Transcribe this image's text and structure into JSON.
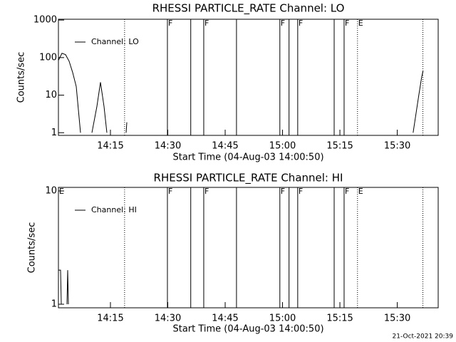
{
  "chart_data": [
    {
      "type": "line",
      "title": "RHESSI PARTICLE_RATE Channel: LO",
      "x_label": "Start Time (04-Aug-03 14:00:50)",
      "y_label": "Counts/sec",
      "x": [
        1.4,
        2.33,
        3.26,
        4.19,
        5.12,
        6.06,
        7.17,
        null,
        10.15,
        11.46,
        12.39,
        13.32,
        14.06,
        null,
        19.09,
        19.28,
        null,
        94.14,
        95.63,
        96.38,
        96.75
      ],
      "series": [
        {
          "name": "Channel: LO",
          "color": "#000000",
          "values": [
            85,
            130,
            120,
            80,
            40,
            17,
            1,
            null,
            1,
            5,
            22,
            5,
            1,
            null,
            1,
            1.9,
            null,
            1,
            10,
            30,
            45
          ]
        }
      ],
      "xlim": [
        1.4,
        100.7
      ],
      "xticks": [
        {
          "value": 15,
          "label": "14:15"
        },
        {
          "value": 30,
          "label": "14:30"
        },
        {
          "value": 45,
          "label": "14:45"
        },
        {
          "value": 60,
          "label": "15:00"
        },
        {
          "value": 75,
          "label": "15:15"
        },
        {
          "value": 90,
          "label": "15:30"
        }
      ],
      "ylim": [
        0.85,
        1050
      ],
      "yticks": [
        1,
        10,
        100,
        1000
      ],
      "y_scale": "log",
      "legend": "upper left",
      "events": [
        {
          "x": 18.7,
          "style": "dotted"
        },
        {
          "x": 29.9,
          "style": "solid",
          "label": "F"
        },
        {
          "x": 36.0,
          "style": "solid"
        },
        {
          "x": 39.4,
          "style": "solid",
          "label": "F"
        },
        {
          "x": 47.96,
          "style": "solid"
        },
        {
          "x": 59.3,
          "style": "solid",
          "label": "F"
        },
        {
          "x": 61.7,
          "style": "solid"
        },
        {
          "x": 63.97,
          "style": "solid",
          "label": "F"
        },
        {
          "x": 73.5,
          "style": "solid"
        },
        {
          "x": 76.1,
          "style": "solid",
          "label": "F"
        },
        {
          "x": 79.6,
          "style": "dotted",
          "label": "E"
        },
        {
          "x": 96.7,
          "style": "dotted"
        }
      ]
    },
    {
      "type": "line",
      "title": "RHESSI PARTICLE_RATE Channel: HI",
      "x_label": "Start Time (04-Aug-03 14:00:50)",
      "y_label": "Counts/sec",
      "x": [
        1.4,
        1.96,
        2.14,
        null,
        3.63,
        3.82,
        4.0
      ],
      "series": [
        {
          "name": "Channel: HI",
          "color": "#000000",
          "values": [
            2,
            2,
            1,
            null,
            1,
            2,
            1
          ]
        }
      ],
      "xlim": [
        1.4,
        100.7
      ],
      "xticks": [
        {
          "value": 15,
          "label": "14:15"
        },
        {
          "value": 30,
          "label": "14:30"
        },
        {
          "value": 45,
          "label": "14:45"
        },
        {
          "value": 60,
          "label": "15:00"
        },
        {
          "value": 75,
          "label": "15:15"
        },
        {
          "value": 90,
          "label": "15:30"
        }
      ],
      "ylim": [
        0.93,
        10.75
      ],
      "yticks": [
        1,
        10
      ],
      "y_scale": "log",
      "legend": "upper left",
      "events": [
        {
          "x": 1.4,
          "style": "dotted",
          "label": "E"
        },
        {
          "x": 18.7,
          "style": "dotted"
        },
        {
          "x": 29.9,
          "style": "solid",
          "label": "F"
        },
        {
          "x": 36.0,
          "style": "solid"
        },
        {
          "x": 39.4,
          "style": "solid",
          "label": "F"
        },
        {
          "x": 47.96,
          "style": "solid"
        },
        {
          "x": 59.3,
          "style": "solid",
          "label": "F"
        },
        {
          "x": 61.7,
          "style": "solid"
        },
        {
          "x": 63.97,
          "style": "solid",
          "label": "F"
        },
        {
          "x": 73.5,
          "style": "solid"
        },
        {
          "x": 76.1,
          "style": "solid",
          "label": "F"
        },
        {
          "x": 79.6,
          "style": "dotted",
          "label": "E"
        },
        {
          "x": 96.7,
          "style": "dotted"
        }
      ]
    }
  ],
  "footer": "21-Oct-2021 20:39"
}
